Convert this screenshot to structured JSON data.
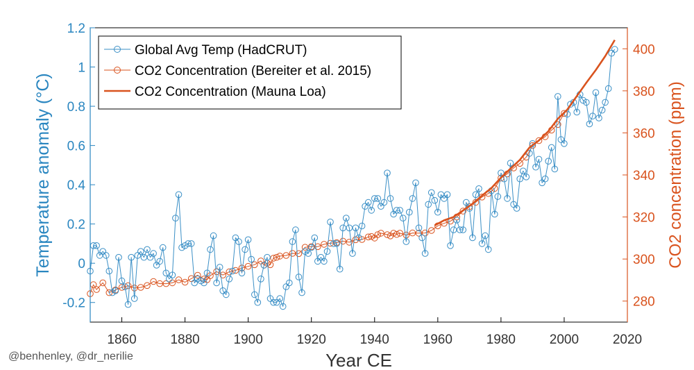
{
  "credit": "@benhenley, @dr_nerilie",
  "chart_data": {
    "type": "line",
    "xlabel": "Year CE",
    "ylabel_left": "Temperature anomaly (°C)",
    "ylabel_right": "CO2 concentration (ppm)",
    "xlim": [
      1850,
      2020
    ],
    "ylim_left": [
      -0.3,
      1.2
    ],
    "ylim_right": [
      270,
      410
    ],
    "xticks": [
      1860,
      1880,
      1900,
      1920,
      1940,
      1960,
      1980,
      2000,
      2020
    ],
    "yticks_left": [
      -0.2,
      0,
      0.2,
      0.4,
      0.6,
      0.8,
      1,
      1.2
    ],
    "yticks_left_labels": [
      "-0.2",
      "0",
      "0.2",
      "0.4",
      "0.6",
      "0.8",
      "1",
      "1.2"
    ],
    "yticks_right": [
      280,
      300,
      320,
      340,
      360,
      380,
      400
    ],
    "grid": false,
    "legend_position": "top-left",
    "colors": {
      "temperature": "#3a8fc6",
      "co2": "#d9531e",
      "axis_left": "#2a86c0",
      "axis_right": "#d9531e"
    },
    "series": [
      {
        "name": "Global Avg Temp (HadCRUT)",
        "axis": "left",
        "style": "line-circle",
        "x": [
          1850,
          1851,
          1852,
          1853,
          1854,
          1855,
          1856,
          1857,
          1858,
          1859,
          1860,
          1861,
          1862,
          1863,
          1864,
          1865,
          1866,
          1867,
          1868,
          1869,
          1870,
          1871,
          1872,
          1873,
          1874,
          1875,
          1876,
          1877,
          1878,
          1879,
          1880,
          1881,
          1882,
          1883,
          1884,
          1885,
          1886,
          1887,
          1888,
          1889,
          1890,
          1891,
          1892,
          1893,
          1894,
          1895,
          1896,
          1897,
          1898,
          1899,
          1900,
          1901,
          1902,
          1903,
          1904,
          1905,
          1906,
          1907,
          1908,
          1909,
          1910,
          1911,
          1912,
          1913,
          1914,
          1915,
          1916,
          1917,
          1918,
          1919,
          1920,
          1921,
          1922,
          1923,
          1924,
          1925,
          1926,
          1927,
          1928,
          1929,
          1930,
          1931,
          1932,
          1933,
          1934,
          1935,
          1936,
          1937,
          1938,
          1939,
          1940,
          1941,
          1942,
          1943,
          1944,
          1945,
          1946,
          1947,
          1948,
          1949,
          1950,
          1951,
          1952,
          1953,
          1954,
          1955,
          1956,
          1957,
          1958,
          1959,
          1960,
          1961,
          1962,
          1963,
          1964,
          1965,
          1966,
          1967,
          1968,
          1969,
          1970,
          1971,
          1972,
          1973,
          1974,
          1975,
          1976,
          1977,
          1978,
          1979,
          1980,
          1981,
          1982,
          1983,
          1984,
          1985,
          1986,
          1987,
          1988,
          1989,
          1990,
          1991,
          1992,
          1993,
          1994,
          1995,
          1996,
          1997,
          1998,
          1999,
          2000,
          2001,
          2002,
          2003,
          2004,
          2005,
          2006,
          2007,
          2008,
          2009,
          2010,
          2011,
          2012,
          2013,
          2014,
          2015,
          2016
        ],
        "values": [
          -0.04,
          0.09,
          0.09,
          0.04,
          0.06,
          0.04,
          -0.04,
          -0.15,
          -0.14,
          0.03,
          -0.09,
          -0.12,
          -0.21,
          0.03,
          -0.18,
          0.04,
          0.06,
          0.03,
          0.07,
          0.03,
          0.05,
          -0.01,
          0.01,
          0.08,
          -0.05,
          -0.08,
          -0.06,
          0.23,
          0.35,
          0.08,
          0.09,
          0.1,
          0.1,
          -0.1,
          -0.08,
          -0.09,
          -0.1,
          -0.05,
          0.07,
          0.14,
          -0.1,
          -0.02,
          -0.14,
          -0.16,
          -0.08,
          -0.04,
          0.13,
          0.11,
          -0.05,
          0.07,
          0.12,
          0.02,
          -0.16,
          -0.2,
          -0.08,
          -0.01,
          0.03,
          -0.18,
          -0.2,
          -0.2,
          -0.18,
          -0.22,
          -0.12,
          -0.1,
          0.11,
          0.17,
          -0.07,
          -0.15,
          0.06,
          0.05,
          0.08,
          0.13,
          0.01,
          0.03,
          0.01,
          0.06,
          0.21,
          0.1,
          0.1,
          -0.03,
          0.18,
          0.23,
          0.18,
          0.05,
          0.18,
          0.13,
          0.19,
          0.29,
          0.31,
          0.27,
          0.33,
          0.33,
          0.29,
          0.31,
          0.46,
          0.33,
          0.25,
          0.27,
          0.27,
          0.23,
          0.11,
          0.26,
          0.33,
          0.41,
          0.18,
          0.13,
          0.05,
          0.3,
          0.36,
          0.32,
          0.26,
          0.35,
          0.33,
          0.35,
          0.09,
          0.17,
          0.22,
          0.17,
          0.17,
          0.31,
          0.28,
          0.13,
          0.35,
          0.38,
          0.1,
          0.14,
          0.07,
          0.37,
          0.25,
          0.34,
          0.46,
          0.43,
          0.33,
          0.51,
          0.3,
          0.28,
          0.43,
          0.47,
          0.44,
          0.56,
          0.61,
          0.49,
          0.53,
          0.41,
          0.43,
          0.52,
          0.59,
          0.48,
          0.85,
          0.63,
          0.61,
          0.76,
          0.81,
          0.82,
          0.77,
          0.86,
          0.83,
          0.82,
          0.71,
          0.75,
          0.87,
          0.74,
          0.78,
          0.82,
          0.89,
          1.07,
          1.09
        ]
      },
      {
        "name": "CO2 Concentration (Bereiter et al. 2015)",
        "axis": "right",
        "style": "line-circle",
        "x": [
          1850,
          1851,
          1852,
          1854,
          1856,
          1858,
          1860,
          1862,
          1864,
          1866,
          1868,
          1870,
          1872,
          1874,
          1876,
          1878,
          1880,
          1882,
          1884,
          1886,
          1887,
          1888,
          1890,
          1892,
          1894,
          1896,
          1898,
          1900,
          1902,
          1904,
          1905,
          1906,
          1907,
          1908,
          1909,
          1910,
          1912,
          1914,
          1916,
          1918,
          1920,
          1922,
          1924,
          1926,
          1928,
          1930,
          1932,
          1934,
          1936,
          1938,
          1939,
          1940,
          1941,
          1942,
          1944,
          1945,
          1946,
          1947,
          1948,
          1950,
          1952,
          1954,
          1956,
          1958,
          1960,
          1962,
          1964,
          1966,
          1968,
          1970,
          1972,
          1974,
          1976,
          1978,
          1980,
          1982,
          1984,
          1986,
          1988,
          1990,
          1992,
          1994,
          1996,
          1998,
          2000
        ],
        "values": [
          283.5,
          287.8,
          285.5,
          288.7,
          284.0,
          285.3,
          286.5,
          287.3,
          286.2,
          286.5,
          287.4,
          289.3,
          288.3,
          288.3,
          288.7,
          290.1,
          289.0,
          290.7,
          292.3,
          290.5,
          290.2,
          292.1,
          294.0,
          292.4,
          293.9,
          294.6,
          295.7,
          296.5,
          297.3,
          299.1,
          297.1,
          298.0,
          297.3,
          300.4,
          300.8,
          301.4,
          301.7,
          302.7,
          302.6,
          305.6,
          305.9,
          305.9,
          307.0,
          307.5,
          307.8,
          308.5,
          308.0,
          309.2,
          309.3,
          310.5,
          310.7,
          310.0,
          311.6,
          312.3,
          311.6,
          311.0,
          312.3,
          311.7,
          312.3,
          311.4,
          312.4,
          312.3,
          312.4,
          313.6,
          315.8,
          317.0,
          318.0,
          320.0,
          322.8,
          324.9,
          327.0,
          329.5,
          331.2,
          333.6,
          338.5,
          340.5,
          343.3,
          345.5,
          348.5,
          354.0,
          356.3,
          358.2,
          361.3,
          364.0,
          369.3
        ]
      },
      {
        "name": "CO2 Concentration (Mauna Loa)",
        "axis": "right",
        "style": "line",
        "x": [
          1959,
          1962,
          1965,
          1968,
          1971,
          1974,
          1977,
          1980,
          1983,
          1986,
          1989,
          1992,
          1995,
          1998,
          2001,
          2004,
          2007,
          2010,
          2013,
          2016
        ],
        "values": [
          316.0,
          318.4,
          320.0,
          323.1,
          326.3,
          330.2,
          333.8,
          338.7,
          343.0,
          347.2,
          353.0,
          356.4,
          360.8,
          366.7,
          371.1,
          377.5,
          383.8,
          389.9,
          396.5,
          404.2
        ]
      }
    ]
  }
}
